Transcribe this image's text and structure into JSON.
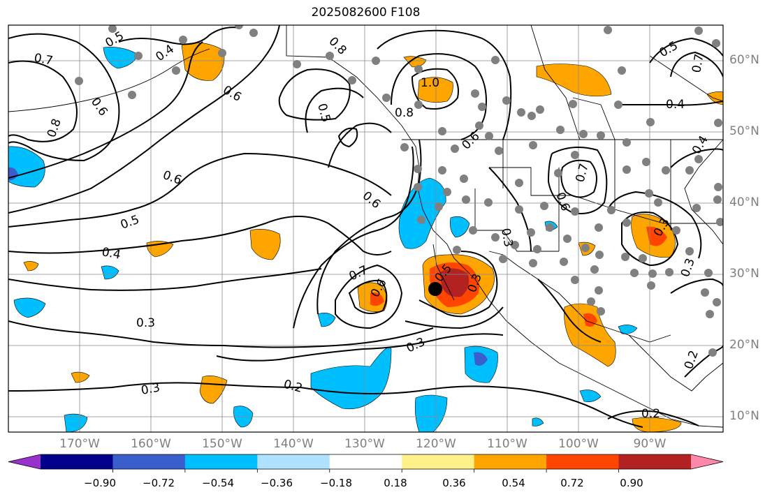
{
  "title": "2025082600 F108",
  "lat_labels": [
    "60°N",
    "50°N",
    "40°N",
    "30°N",
    "20°N",
    "10°N"
  ],
  "lon_labels": [
    "170°W",
    "160°W",
    "150°W",
    "140°W",
    "130°W",
    "120°W",
    "110°W",
    "100°W",
    "90°W"
  ],
  "colorbar": {
    "ticks": [
      "−0.90",
      "−0.72",
      "−0.54",
      "−0.36",
      "−0.18",
      "0.18",
      "0.36",
      "0.54",
      "0.72",
      "0.90"
    ],
    "colors": [
      "#9932cc",
      "#00008b",
      "#3a5fcd",
      "#00bfff",
      "#b0e2ff",
      "#ffffff",
      "#fff08a",
      "#ffa500",
      "#ff4500",
      "#b22222",
      "#ff88aa"
    ]
  },
  "contour_labels": [
    "0.7",
    "0.5",
    "0.4",
    "0.6",
    "0.6",
    "0.8",
    "0.5",
    "0.8",
    "1.0",
    "0.8",
    "0.4",
    "0.5",
    "0.6",
    "0.6",
    "0.5",
    "0.4",
    "0.6",
    "0.7",
    "0.6",
    "0.5",
    "0.3",
    "0.3",
    "0.3",
    "0.2",
    "0.3",
    "0.7",
    "0.6",
    "0.3",
    "0.4",
    "0.3",
    "0.2",
    "0.2",
    "0.7",
    "0.3"
  ],
  "marker": "analysis-point"
}
